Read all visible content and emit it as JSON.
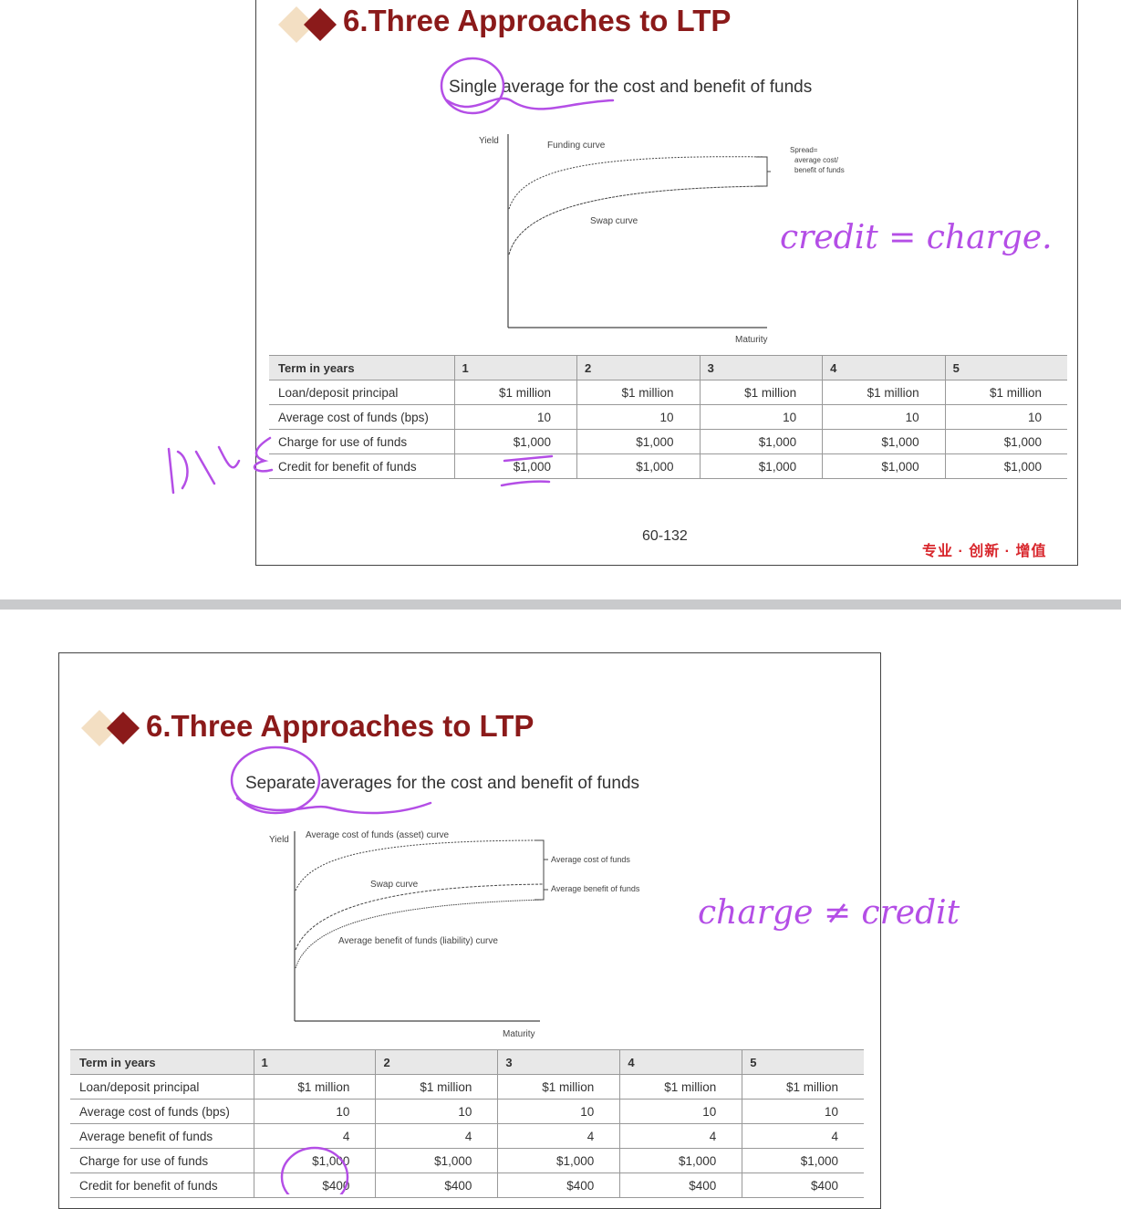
{
  "slides": [
    {
      "title": "6.Three Approaches to LTP",
      "subtitle": "Single average for the cost and benefit of funds",
      "chart": {
        "y_label": "Yield",
        "x_label": "Maturity",
        "curves": [
          "Funding curve",
          "Swap curve"
        ],
        "bracket_label": [
          "Spread=",
          "average cost/",
          "benefit of funds"
        ]
      },
      "table": {
        "header": [
          "Term in years",
          "1",
          "2",
          "3",
          "4",
          "5"
        ],
        "rows": [
          [
            "Loan/deposit principal",
            "$1 million",
            "$1 million",
            "$1 million",
            "$1 million",
            "$1 million"
          ],
          [
            "Average cost of funds (bps)",
            "10",
            "10",
            "10",
            "10",
            "10"
          ],
          [
            "Charge for use of funds",
            "$1,000",
            "$1,000",
            "$1,000",
            "$1,000",
            "$1,000"
          ],
          [
            "Credit for benefit of funds",
            "$1,000",
            "$1,000",
            "$1,000",
            "$1,000",
            "$1,000"
          ]
        ]
      },
      "page": "60-132",
      "logo": "专业 · 创新 · 增值",
      "note": "credit = charge."
    },
    {
      "title": "6.Three Approaches to LTP",
      "subtitle": "Separate averages for the cost and benefit of funds",
      "chart": {
        "y_label": "Yield",
        "x_label": "Maturity",
        "curves": [
          "Average cost of funds (asset) curve",
          "Swap curve",
          "Average benefit of funds (liability) curve"
        ],
        "bracket_labels": [
          "Average cost of funds",
          "Average benefit of funds"
        ]
      },
      "table": {
        "header": [
          "Term in years",
          "1",
          "2",
          "3",
          "4",
          "5"
        ],
        "rows": [
          [
            "Loan/deposit principal",
            "$1 million",
            "$1 million",
            "$1 million",
            "$1 million",
            "$1 million"
          ],
          [
            "Average cost of funds (bps)",
            "10",
            "10",
            "10",
            "10",
            "10"
          ],
          [
            "Average benefit of funds",
            "4",
            "4",
            "4",
            "4",
            "4"
          ],
          [
            "Charge for use of funds",
            "$1,000",
            "$1,000",
            "$1,000",
            "$1,000",
            "$1,000"
          ],
          [
            "Credit for benefit of funds",
            "$400",
            "$400",
            "$400",
            "$400",
            "$400"
          ]
        ]
      },
      "note": "charge ≠ credit"
    }
  ],
  "colors": {
    "title": "#8b1a1a",
    "ink": "#b44ee6",
    "logo": "#d8262c"
  }
}
